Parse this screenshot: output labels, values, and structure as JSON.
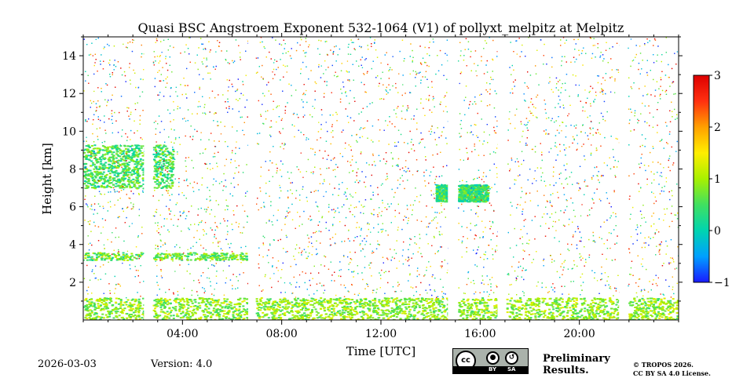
{
  "chart_data": {
    "type": "heatmap",
    "title": "Quasi BSC Angstroem Exponent 532-1064 (V1) of pollyxt_melpitz at Melpitz",
    "xlabel": "Time [UTC]",
    "ylabel": "Height [km]",
    "xlim": [
      0,
      24
    ],
    "ylim": [
      0,
      15
    ],
    "x_ticks": [
      {
        "value": 4,
        "label": "04:00"
      },
      {
        "value": 8,
        "label": "08:00"
      },
      {
        "value": 12,
        "label": "12:00"
      },
      {
        "value": 16,
        "label": "16:00"
      },
      {
        "value": 20,
        "label": "20:00"
      }
    ],
    "y_ticks": [
      {
        "value": 2,
        "label": "2"
      },
      {
        "value": 4,
        "label": "4"
      },
      {
        "value": 6,
        "label": "6"
      },
      {
        "value": 8,
        "label": "8"
      },
      {
        "value": 10,
        "label": "10"
      },
      {
        "value": 12,
        "label": "12"
      },
      {
        "value": 14,
        "label": "14"
      }
    ],
    "colorbar": {
      "range": [
        -1,
        3
      ],
      "ticks": [
        {
          "value": 3,
          "label": "3"
        },
        {
          "value": 2,
          "label": "2"
        },
        {
          "value": 1,
          "label": "1"
        },
        {
          "value": 0,
          "label": "0"
        },
        {
          "value": -1,
          "label": "−1"
        }
      ],
      "colormap": [
        "#1a1aff",
        "#00a0ff",
        "#00d4b0",
        "#40e060",
        "#a8f000",
        "#ffee00",
        "#ffa000",
        "#ff3010",
        "#dd0000"
      ]
    },
    "no_data_intervals_hours": [
      [
        2.45,
        2.8
      ],
      [
        6.65,
        6.95
      ],
      [
        14.7,
        15.1
      ],
      [
        16.7,
        17.05
      ],
      [
        21.6,
        21.95
      ]
    ],
    "features": [
      {
        "name": "boundary layer",
        "t_start": 0,
        "t_end": 24,
        "z_bottom": 0.0,
        "z_top": 1.2,
        "angstroem": 0.9
      },
      {
        "name": "cloud layer",
        "t_start": 0.0,
        "t_end": 3.6,
        "z_bottom": 7.0,
        "z_top": 9.3,
        "angstroem": 0.5
      },
      {
        "name": "cloud layer",
        "t_start": 14.2,
        "t_end": 16.3,
        "z_bottom": 6.3,
        "z_top": 7.2,
        "angstroem": 0.4
      },
      {
        "name": "aerosol layer",
        "t_start": 0.0,
        "t_end": 6.6,
        "z_bottom": 3.2,
        "z_top": 3.6,
        "angstroem": 0.7
      }
    ]
  },
  "footer": {
    "date": "2026-03-03",
    "version": "Version: 4.0",
    "prelim_line1": "Preliminary",
    "prelim_line2": "Results.",
    "copyright_line1": "© TROPOS 2026.",
    "copyright_line2": "CC BY SA 4.0 License."
  },
  "license_badge": {
    "cc_text": "cc",
    "by_label": "BY",
    "sa_label": "SA",
    "by_icon": "person-icon",
    "sa_icon": "share-alike-icon"
  },
  "colors": {
    "preliminary": "#e03a3a"
  }
}
